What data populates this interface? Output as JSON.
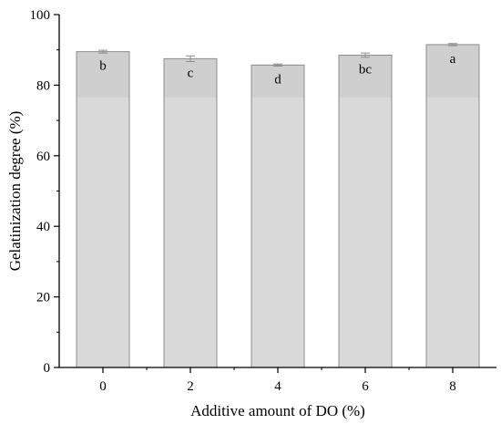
{
  "chart_data": {
    "type": "bar",
    "xlabel": "Additive amount of DO (%)",
    "ylabel": "Gelatinization degree (%)",
    "categories": [
      "0",
      "2",
      "4",
      "6",
      "8"
    ],
    "values": [
      89.5,
      87.5,
      85.7,
      88.5,
      91.5
    ],
    "errors": [
      0.4,
      0.8,
      0.3,
      0.6,
      0.3
    ],
    "significance_labels": [
      "b",
      "c",
      "d",
      "bc",
      "a"
    ],
    "ylim": [
      0,
      100
    ],
    "yticks": [
      0,
      20,
      40,
      60,
      80,
      100
    ],
    "grid": false,
    "legend": "none",
    "colors": {
      "bar_fill": "#d9d9d9",
      "bar_top_fill": "#cfcfcf",
      "bar_stroke": "#8c8c8c",
      "error_bar": "#8c8c8c",
      "axis": "#000000"
    }
  }
}
